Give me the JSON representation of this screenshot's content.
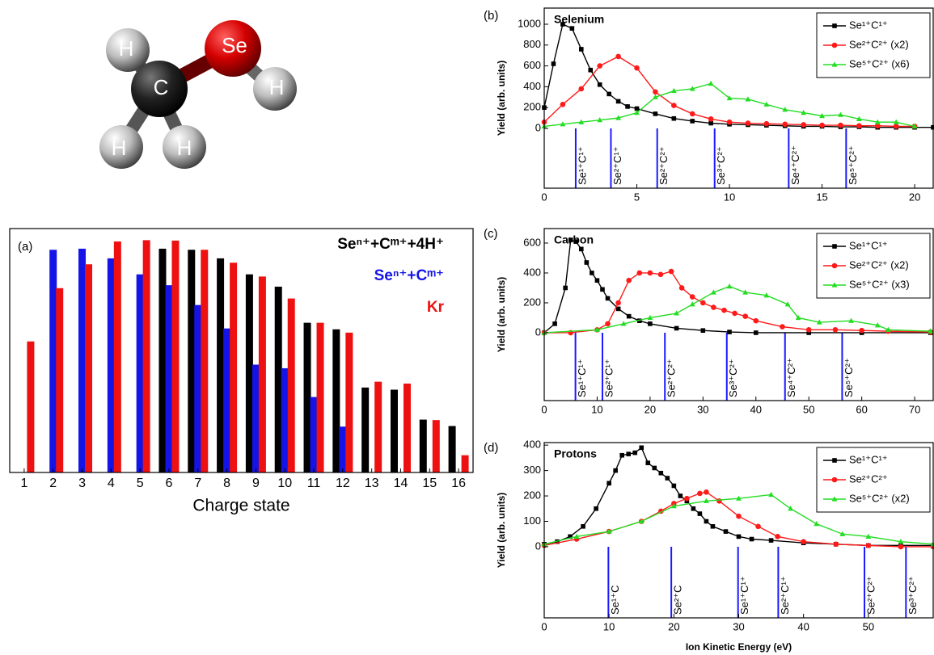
{
  "diagram": {
    "atoms": [
      {
        "label": "H"
      },
      {
        "label": "C"
      },
      {
        "label": "H"
      },
      {
        "label": "H"
      },
      {
        "label": "Se"
      },
      {
        "label": "H"
      }
    ]
  },
  "chart_data": [
    {
      "type": "bar",
      "panel_label": "(a)",
      "xlabel": "Charge state",
      "yscale": "log",
      "ylim": [
        0.19,
        121
      ],
      "legend": "upper right",
      "categories": [
        "1",
        "2",
        "3",
        "4",
        "5",
        "6",
        "7",
        "8",
        "9",
        "10",
        "11",
        "12",
        "13",
        "14",
        "15",
        "16"
      ],
      "series": [
        {
          "name": "Seⁿ⁺+Cᵐ⁺+4H⁺",
          "color": "#000000",
          "values": [
            null,
            null,
            null,
            null,
            null,
            71,
            69,
            55,
            36,
            26,
            10,
            8.4,
            1.8,
            1.7,
            0.77,
            0.65
          ]
        },
        {
          "name": "Seⁿ⁺+Cᵐ⁺",
          "color": "#1414e6",
          "values": [
            null,
            69,
            71,
            55,
            36,
            27,
            16,
            8.6,
            3.3,
            3.0,
            1.4,
            0.64,
            null,
            null,
            null,
            null
          ]
        },
        {
          "name": "Kr",
          "color": "#ee1111",
          "values": [
            6.1,
            25,
            47,
            86,
            89,
            88,
            69,
            49,
            34,
            19,
            10,
            7.7,
            2.1,
            2.0,
            0.76,
            0.3
          ]
        }
      ]
    },
    {
      "type": "line",
      "panel_label": "(b)",
      "title": "Selenium",
      "ylabel": "Yield (arb. units)",
      "legend": "upper right",
      "xlim": [
        0,
        21
      ],
      "xticks": [
        0,
        5,
        10,
        15,
        20
      ],
      "ylim": [
        -574,
        1155
      ],
      "yticks": [
        0,
        200,
        400,
        600,
        800,
        1000
      ],
      "series": [
        {
          "name": "Se¹⁺C¹⁺",
          "color": "#000000",
          "marker": "square",
          "x": [
            0,
            0.5,
            1,
            1.5,
            2,
            2.5,
            3,
            3.5,
            4,
            4.5,
            5,
            6,
            7,
            8,
            9,
            10,
            11,
            12,
            13,
            14,
            15,
            16,
            17,
            18,
            19,
            20,
            21
          ],
          "values": [
            200,
            620,
            1000,
            960,
            760,
            560,
            420,
            330,
            260,
            210,
            190,
            140,
            95,
            70,
            50,
            40,
            35,
            30,
            25,
            20,
            20,
            15,
            15,
            10,
            10,
            10,
            10
          ]
        },
        {
          "name": "Se²⁺C²⁺ (x2)",
          "color": "#ff1a1a",
          "marker": "circle",
          "x": [
            0,
            1,
            2,
            3,
            4,
            5,
            6,
            7,
            8,
            9,
            10,
            11,
            12,
            13,
            14,
            15,
            16,
            17,
            18,
            19,
            20
          ],
          "values": [
            60,
            230,
            380,
            600,
            690,
            580,
            350,
            220,
            140,
            90,
            60,
            50,
            45,
            40,
            35,
            30,
            30,
            25,
            25,
            20,
            20
          ]
        },
        {
          "name": "Se⁵⁺C²⁺ (x6)",
          "color": "#22dd22",
          "marker": "triangle",
          "x": [
            0,
            1,
            2,
            3,
            4,
            5,
            6,
            7,
            8,
            9,
            10,
            11,
            12,
            13,
            14,
            15,
            16,
            17,
            18,
            19,
            20
          ],
          "values": [
            20,
            40,
            60,
            80,
            100,
            150,
            300,
            360,
            380,
            430,
            290,
            280,
            230,
            180,
            150,
            120,
            130,
            90,
            60,
            60,
            20
          ]
        }
      ],
      "vlines": {
        "color": "#1a1aff",
        "x": [
          1.7,
          3.6,
          6.1,
          9.2,
          13.2,
          16.3
        ],
        "labels": [
          "Se¹⁺C¹⁺",
          "Se²⁺C¹⁺",
          "Se²⁺C²⁺",
          "Se³⁺C²⁺",
          "Se⁴⁺C²⁺",
          "Se⁵⁺C²⁺"
        ]
      }
    },
    {
      "type": "line",
      "panel_label": "(c)",
      "title": "Carbon",
      "ylabel": "Yield (arb. units)",
      "legend": "upper right",
      "xlim": [
        0,
        73.5
      ],
      "xticks": [
        0,
        10,
        20,
        30,
        40,
        50,
        60,
        70
      ],
      "ylim": [
        -454,
        697
      ],
      "yticks": [
        0,
        200,
        400,
        600
      ],
      "series": [
        {
          "name": "Se¹⁺C¹⁺",
          "color": "#000000",
          "marker": "square",
          "x": [
            0,
            2,
            4,
            5,
            6,
            7,
            8,
            9,
            10,
            11,
            12,
            14,
            16,
            18,
            20,
            25,
            30,
            35,
            40,
            50,
            60,
            73
          ],
          "values": [
            0,
            60,
            300,
            620,
            610,
            560,
            470,
            400,
            350,
            290,
            230,
            160,
            110,
            80,
            60,
            30,
            15,
            5,
            0,
            0,
            0,
            0
          ]
        },
        {
          "name": "Se²⁺C²⁺ (x2)",
          "color": "#ff1a1a",
          "marker": "circle",
          "x": [
            0,
            5,
            10,
            12,
            14,
            16,
            18,
            20,
            22,
            24,
            26,
            28,
            30,
            32,
            34,
            36,
            38,
            40,
            45,
            50,
            55,
            60,
            65,
            73
          ],
          "values": [
            0,
            0,
            20,
            60,
            200,
            350,
            400,
            400,
            390,
            410,
            300,
            240,
            200,
            170,
            150,
            130,
            110,
            80,
            40,
            20,
            20,
            15,
            10,
            5
          ]
        },
        {
          "name": "Se⁵⁺C²⁺ (x3)",
          "color": "#22dd22",
          "marker": "triangle",
          "x": [
            0,
            10,
            15,
            20,
            25,
            28,
            32,
            35,
            38,
            42,
            46,
            48,
            52,
            58,
            63,
            65,
            73
          ],
          "values": [
            0,
            20,
            60,
            100,
            130,
            190,
            270,
            310,
            270,
            250,
            190,
            100,
            70,
            80,
            50,
            20,
            10
          ]
        }
      ],
      "vlines": {
        "color": "#1a1aff",
        "x": [
          5.9,
          11,
          22.8,
          34.5,
          45.5,
          56.3
        ],
        "labels": [
          "Se¹⁺C¹⁺",
          "Se²⁺C¹⁺",
          "Se²⁺C²⁺",
          "Se³⁺C²⁺",
          "Se⁴⁺C²⁺",
          "Se⁵⁺C²⁺"
        ]
      }
    },
    {
      "type": "line",
      "panel_label": "(d)",
      "title": "Protons",
      "ylabel": "Yield (arb. units)",
      "xlabel": "Ion Kinetic Energy (eV)",
      "legend": "upper right",
      "xlim": [
        0,
        60
      ],
      "xticks": [
        0,
        10,
        20,
        30,
        40,
        50
      ],
      "ylim": [
        -280,
        410
      ],
      "yticks": [
        0,
        100,
        200,
        300,
        400
      ],
      "series": [
        {
          "name": "Se¹⁺C¹⁺",
          "color": "#000000",
          "marker": "square",
          "x": [
            0,
            2,
            4,
            6,
            8,
            10,
            11,
            12,
            13,
            14,
            15,
            16,
            17,
            18,
            19,
            20,
            21,
            22,
            23,
            24,
            25,
            26,
            28,
            30,
            32,
            35,
            40,
            45,
            50,
            55,
            60
          ],
          "values": [
            10,
            20,
            40,
            80,
            150,
            250,
            300,
            360,
            365,
            370,
            390,
            330,
            310,
            290,
            270,
            240,
            200,
            180,
            150,
            130,
            100,
            80,
            60,
            40,
            30,
            25,
            15,
            10,
            5,
            5,
            5
          ]
        },
        {
          "name": "Se²⁺C²⁺",
          "color": "#ff1a1a",
          "marker": "circle",
          "x": [
            0,
            5,
            10,
            15,
            18,
            20,
            22,
            24,
            25,
            27,
            30,
            33,
            36,
            40,
            45,
            50,
            55,
            60
          ],
          "values": [
            5,
            30,
            60,
            100,
            140,
            170,
            190,
            210,
            215,
            180,
            120,
            80,
            40,
            20,
            10,
            5,
            0,
            0
          ]
        },
        {
          "name": "Se⁵⁺C²⁺ (x2)",
          "color": "#22dd22",
          "marker": "triangle",
          "x": [
            0,
            5,
            10,
            15,
            20,
            25,
            30,
            35,
            38,
            42,
            46,
            50,
            55,
            60
          ],
          "values": [
            10,
            40,
            60,
            100,
            160,
            180,
            190,
            205,
            150,
            90,
            50,
            40,
            20,
            10
          ]
        }
      ],
      "vlines": {
        "color": "#1a1aff",
        "x": [
          9.9,
          19.6,
          29.9,
          36.1,
          49.4,
          55.8
        ],
        "labels": [
          "Se¹⁺C",
          "Se²⁺C",
          "Se¹⁺C¹⁺",
          "Se²⁺C¹⁺",
          "Se²⁺C²⁺",
          "Se³⁺C²⁺"
        ]
      }
    }
  ]
}
